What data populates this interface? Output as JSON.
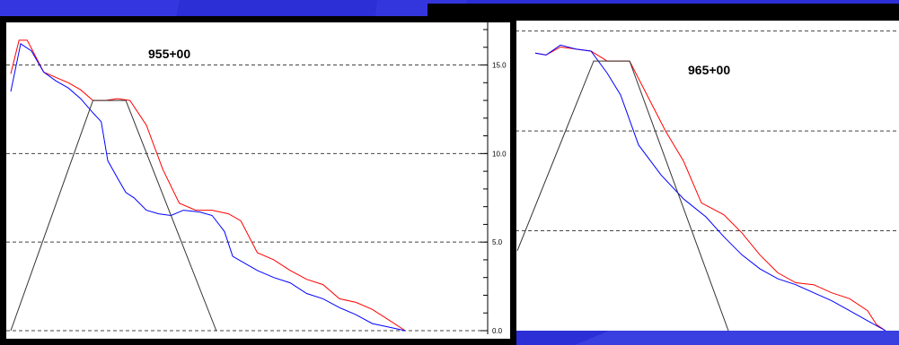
{
  "background_color": "#2c2ed6",
  "chart_data": [
    {
      "type": "line",
      "title": "955+00",
      "xlabel": "",
      "ylabel": "",
      "ylim": [
        0,
        17
      ],
      "yticks": [
        "0.0",
        "5.0",
        "10.0",
        "15.0"
      ],
      "ytick_values": [
        0,
        5,
        10,
        15
      ],
      "grid": "horizontal-dashed",
      "xlim": [
        0,
        530
      ],
      "series": [
        {
          "color": "#ff0000",
          "x": [
            0,
            10,
            20,
            40,
            55,
            70,
            85,
            100,
            115,
            130,
            145,
            165,
            185,
            205,
            225,
            245,
            265,
            280,
            300,
            320,
            340,
            360,
            380,
            400,
            420,
            440,
            460,
            480
          ],
          "y": [
            14.5,
            16.4,
            16.4,
            14.6,
            14.3,
            14.0,
            13.6,
            13.0,
            13.0,
            13.1,
            13.0,
            11.6,
            9.1,
            7.2,
            6.8,
            6.8,
            6.6,
            6.2,
            4.4,
            4.0,
            3.4,
            2.9,
            2.6,
            1.8,
            1.6,
            1.2,
            0.6,
            0.0
          ]
        },
        {
          "color": "#0000ff",
          "x": [
            0,
            12,
            25,
            40,
            55,
            70,
            85,
            100,
            110,
            118,
            130,
            140,
            150,
            165,
            180,
            195,
            210,
            230,
            245,
            260,
            270,
            285,
            300,
            320,
            340,
            360,
            380,
            400,
            420,
            440,
            460,
            480
          ],
          "y": [
            13.5,
            16.2,
            15.8,
            14.6,
            14.1,
            13.7,
            13.1,
            12.3,
            11.8,
            9.6,
            8.6,
            7.8,
            7.5,
            6.8,
            6.6,
            6.5,
            6.8,
            6.7,
            6.5,
            5.6,
            4.2,
            3.8,
            3.4,
            3.0,
            2.7,
            2.1,
            1.8,
            1.3,
            0.9,
            0.4,
            0.2,
            0.0
          ]
        },
        {
          "color": "#333333",
          "x": [
            0,
            100,
            140,
            250
          ],
          "y": [
            0,
            13.0,
            13.0,
            0
          ]
        }
      ]
    },
    {
      "type": "line",
      "title": "965+00",
      "xlabel": "",
      "ylabel": "",
      "ylim": [
        0,
        15.3
      ],
      "yticks": [],
      "ytick_values": [
        5,
        10,
        15
      ],
      "grid": "horizontal-dashed",
      "xlim": [
        0,
        410
      ],
      "series": [
        {
          "color": "#ff0000",
          "x": [
            20,
            32,
            48,
            65,
            82,
            100,
            125,
            165,
            185,
            205,
            230,
            250,
            270,
            290,
            310,
            330,
            350,
            370,
            390,
            400,
            410
          ],
          "y": [
            13.9,
            13.8,
            14.2,
            14.1,
            14.0,
            13.5,
            13.5,
            10.0,
            8.5,
            6.4,
            5.8,
            4.9,
            3.8,
            2.9,
            2.4,
            2.3,
            1.9,
            1.6,
            1.0,
            0.3,
            0.0
          ]
        },
        {
          "color": "#0000ff",
          "x": [
            20,
            32,
            48,
            65,
            82,
            100,
            115,
            135,
            160,
            185,
            210,
            230,
            250,
            270,
            290,
            310,
            330,
            350,
            370,
            390,
            410
          ],
          "y": [
            13.9,
            13.8,
            14.3,
            14.1,
            14.0,
            12.9,
            11.8,
            9.3,
            7.8,
            6.6,
            5.7,
            4.7,
            3.8,
            3.1,
            2.6,
            2.3,
            1.9,
            1.5,
            1.0,
            0.5,
            0.0
          ]
        },
        {
          "color": "#333333",
          "x": [
            0,
            85,
            125,
            235
          ],
          "y": [
            4.0,
            13.5,
            13.5,
            0
          ]
        }
      ]
    }
  ]
}
